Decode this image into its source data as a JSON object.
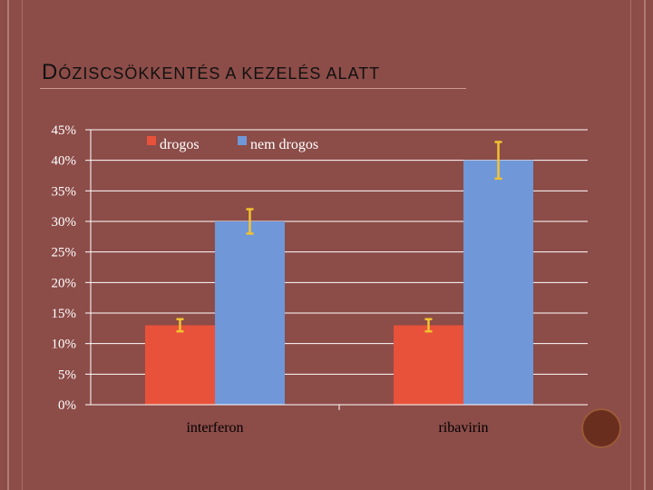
{
  "chart_data": {
    "type": "bar",
    "title": "DÓZISCSÖKKENTÉS A KEZELÉS ALATT",
    "categories": [
      "interferon",
      "ribavirin"
    ],
    "series": [
      {
        "name": "drogos",
        "values": [
          13,
          13
        ],
        "error": [
          1,
          1
        ],
        "color": "#e8523a"
      },
      {
        "name": "nem drogos",
        "values": [
          30,
          40
        ],
        "error": [
          2,
          3
        ],
        "color": "#7097d8"
      }
    ],
    "ylim": [
      0,
      45
    ],
    "yticks": [
      "0%",
      "5%",
      "10%",
      "15%",
      "20%",
      "25%",
      "30%",
      "35%",
      "40%",
      "45%"
    ],
    "grid": true,
    "legend_position": "top",
    "error_bar_color": "#f2c230"
  }
}
